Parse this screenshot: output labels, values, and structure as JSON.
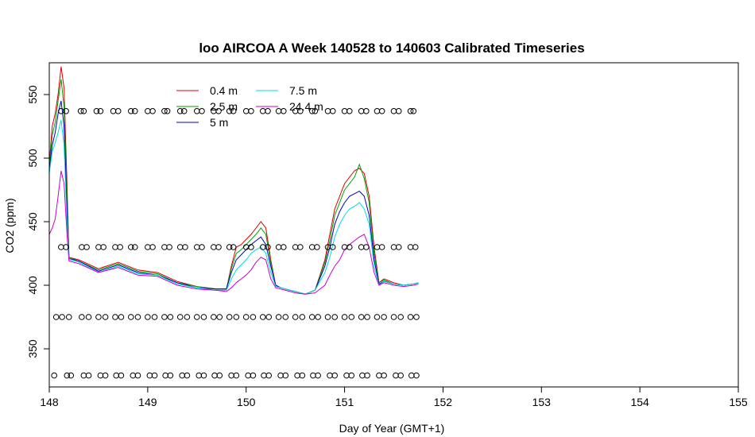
{
  "chart_data": {
    "type": "line",
    "title": "loo AIRCOA A  Week 140528 to 140603  Calibrated Timeseries",
    "xlabel": "Day of Year (GMT+1)",
    "ylabel": "CO2 (ppm)",
    "xlim": [
      148,
      155
    ],
    "ylim": [
      320,
      575
    ],
    "xticks": [
      148,
      149,
      150,
      151,
      152,
      153,
      154,
      155
    ],
    "yticks": [
      350,
      400,
      450,
      500,
      550
    ],
    "legend_position": "top-left",
    "series": [
      {
        "name": "0.4 m",
        "color": "#dd0000",
        "x": [
          148.0,
          148.03,
          148.06,
          148.09,
          148.12,
          148.15,
          148.18,
          148.2,
          148.3,
          148.5,
          148.7,
          148.9,
          149.1,
          149.3,
          149.5,
          149.7,
          149.8,
          149.85,
          149.9,
          149.95,
          150.0,
          150.05,
          150.1,
          150.15,
          150.2,
          150.25,
          150.3,
          150.35,
          150.4,
          150.5,
          150.6,
          150.7,
          150.8,
          150.85,
          150.9,
          150.95,
          151.0,
          151.05,
          151.1,
          151.15,
          151.2,
          151.25,
          151.3,
          151.35,
          151.4,
          151.5,
          151.6,
          151.7,
          151.75
        ],
        "y": [
          495,
          525,
          535,
          550,
          572,
          555,
          480,
          422,
          420,
          413,
          418,
          412,
          410,
          403,
          399,
          397,
          397,
          415,
          430,
          432,
          436,
          440,
          445,
          450,
          445,
          420,
          400,
          398,
          397,
          395,
          393,
          396,
          420,
          440,
          460,
          470,
          480,
          485,
          490,
          492,
          488,
          470,
          430,
          402,
          405,
          402,
          400,
          401,
          402
        ]
      },
      {
        "name": "2.5 m",
        "color": "#00a000",
        "x": [
          148.0,
          148.03,
          148.06,
          148.09,
          148.12,
          148.15,
          148.18,
          148.2,
          148.3,
          148.5,
          148.7,
          148.9,
          149.1,
          149.3,
          149.5,
          149.7,
          149.8,
          149.85,
          149.9,
          149.95,
          150.0,
          150.05,
          150.1,
          150.15,
          150.2,
          150.25,
          150.3,
          150.35,
          150.4,
          150.5,
          150.6,
          150.7,
          150.8,
          150.85,
          150.9,
          150.95,
          151.0,
          151.05,
          151.1,
          151.15,
          151.2,
          151.25,
          151.3,
          151.35,
          151.4,
          151.5,
          151.6,
          151.7,
          151.75
        ],
        "y": [
          492,
          518,
          528,
          545,
          562,
          540,
          470,
          422,
          419,
          412,
          417,
          411,
          409,
          402,
          399,
          397,
          397,
          413,
          425,
          428,
          432,
          436,
          440,
          445,
          440,
          418,
          400,
          398,
          397,
          395,
          393,
          396,
          418,
          435,
          455,
          465,
          475,
          480,
          485,
          495,
          484,
          465,
          425,
          402,
          404,
          401,
          400,
          401,
          402
        ]
      },
      {
        "name": "5 m",
        "color": "#0000cc",
        "x": [
          148.0,
          148.03,
          148.06,
          148.09,
          148.12,
          148.15,
          148.18,
          148.2,
          148.3,
          148.5,
          148.7,
          148.9,
          149.1,
          149.3,
          149.5,
          149.7,
          149.8,
          149.85,
          149.9,
          149.95,
          150.0,
          150.05,
          150.1,
          150.15,
          150.2,
          150.25,
          150.3,
          150.35,
          150.4,
          150.5,
          150.6,
          150.7,
          150.8,
          150.85,
          150.9,
          150.95,
          151.0,
          151.05,
          151.1,
          151.15,
          151.2,
          151.25,
          151.3,
          151.35,
          151.4,
          151.5,
          151.6,
          151.7,
          151.75
        ],
        "y": [
          490,
          510,
          520,
          535,
          545,
          525,
          460,
          421,
          419,
          411,
          416,
          410,
          408,
          402,
          398,
          397,
          397,
          410,
          420,
          424,
          428,
          432,
          435,
          438,
          432,
          415,
          400,
          398,
          397,
          395,
          393,
          396,
          415,
          430,
          448,
          458,
          465,
          470,
          472,
          474,
          470,
          455,
          420,
          401,
          403,
          401,
          400,
          401,
          402
        ]
      },
      {
        "name": "7.5 m",
        "color": "#00dddd",
        "x": [
          148.0,
          148.03,
          148.06,
          148.09,
          148.12,
          148.15,
          148.18,
          148.2,
          148.3,
          148.5,
          148.7,
          148.9,
          149.1,
          149.3,
          149.5,
          149.7,
          149.8,
          149.85,
          149.9,
          149.95,
          150.0,
          150.05,
          150.1,
          150.15,
          150.2,
          150.25,
          150.3,
          150.35,
          150.4,
          150.5,
          150.6,
          150.7,
          150.8,
          150.85,
          150.9,
          150.95,
          151.0,
          151.05,
          151.1,
          151.15,
          151.2,
          151.25,
          151.3,
          151.35,
          151.4,
          151.5,
          151.6,
          151.7,
          151.75
        ],
        "y": [
          488,
          505,
          512,
          520,
          530,
          510,
          450,
          420,
          418,
          410,
          415,
          409,
          408,
          401,
          398,
          396,
          396,
          405,
          412,
          416,
          420,
          425,
          428,
          430,
          425,
          410,
          399,
          398,
          397,
          395,
          393,
          396,
          410,
          422,
          438,
          448,
          455,
          460,
          462,
          465,
          460,
          448,
          415,
          400,
          403,
          401,
          400,
          401,
          402
        ]
      },
      {
        "name": "24.4 m",
        "color": "#cc00cc",
        "x": [
          148.0,
          148.03,
          148.06,
          148.09,
          148.12,
          148.15,
          148.18,
          148.2,
          148.3,
          148.5,
          148.7,
          148.9,
          149.1,
          149.3,
          149.5,
          149.7,
          149.8,
          149.85,
          149.9,
          149.95,
          150.0,
          150.05,
          150.1,
          150.15,
          150.2,
          150.25,
          150.3,
          150.35,
          150.4,
          150.5,
          150.6,
          150.7,
          150.8,
          150.85,
          150.9,
          150.95,
          151.0,
          151.05,
          151.1,
          151.15,
          151.2,
          151.25,
          151.3,
          151.35,
          151.4,
          151.5,
          151.6,
          151.7,
          151.75
        ],
        "y": [
          440,
          445,
          452,
          470,
          490,
          480,
          440,
          419,
          417,
          410,
          414,
          408,
          407,
          400,
          397,
          396,
          395,
          398,
          402,
          405,
          408,
          412,
          418,
          422,
          420,
          405,
          398,
          397,
          396,
          394,
          393,
          394,
          400,
          408,
          415,
          420,
          428,
          432,
          435,
          438,
          440,
          430,
          410,
          400,
          402,
          400,
          399,
          400,
          401
        ]
      },
      {
        "name": "",
        "type": "scatter",
        "color": "#000000",
        "x": [
          148.12,
          148.17,
          148.32,
          148.35,
          148.48,
          148.52,
          148.65,
          148.7,
          148.83,
          148.87,
          149.0,
          149.05,
          149.17,
          149.2,
          149.33,
          149.37,
          149.5,
          149.55,
          149.67,
          149.72,
          149.83,
          149.87,
          150.0,
          150.05,
          150.17,
          150.22,
          150.33,
          150.38,
          150.5,
          150.55,
          150.67,
          150.7,
          150.83,
          150.88,
          151.0,
          151.05,
          151.17,
          151.22,
          151.33,
          151.38,
          151.5,
          151.55,
          151.67,
          151.7
        ],
        "y": [
          537,
          537,
          537,
          537,
          537,
          537,
          537,
          537,
          537,
          537,
          537,
          537,
          537,
          537,
          537,
          537,
          537,
          537,
          537,
          537,
          537,
          537,
          537,
          537,
          537,
          537,
          537,
          537,
          537,
          537,
          537,
          537,
          537,
          537,
          537,
          537,
          537,
          537,
          537,
          537,
          537,
          537,
          537,
          537
        ]
      },
      {
        "name": "",
        "type": "scatter",
        "color": "#000000",
        "x": [
          148.12,
          148.17,
          148.33,
          148.38,
          148.5,
          148.55,
          148.67,
          148.72,
          148.83,
          148.87,
          149.0,
          149.05,
          149.17,
          149.22,
          149.33,
          149.38,
          149.5,
          149.55,
          149.67,
          149.72,
          149.83,
          149.87,
          150.0,
          150.05,
          150.17,
          150.22,
          150.33,
          150.38,
          150.5,
          150.55,
          150.67,
          150.72,
          150.83,
          150.88,
          151.0,
          151.05,
          151.17,
          151.22,
          151.33,
          151.38,
          151.5,
          151.55,
          151.67,
          151.72
        ],
        "y": [
          430,
          430,
          430,
          430,
          430,
          430,
          430,
          430,
          430,
          430,
          430,
          430,
          430,
          430,
          430,
          430,
          430,
          430,
          430,
          430,
          430,
          430,
          430,
          430,
          430,
          430,
          430,
          430,
          430,
          430,
          430,
          430,
          430,
          430,
          430,
          430,
          430,
          430,
          430,
          430,
          430,
          430,
          430,
          430
        ]
      },
      {
        "name": "",
        "type": "scatter",
        "color": "#000000",
        "x": [
          148.07,
          148.13,
          148.2,
          148.33,
          148.4,
          148.5,
          148.57,
          148.67,
          148.73,
          148.83,
          148.9,
          149.0,
          149.07,
          149.17,
          149.23,
          149.33,
          149.4,
          149.5,
          149.57,
          149.67,
          149.73,
          149.83,
          149.9,
          150.0,
          150.07,
          150.17,
          150.23,
          150.33,
          150.4,
          150.5,
          150.57,
          150.67,
          150.73,
          150.83,
          150.9,
          151.0,
          151.07,
          151.17,
          151.23,
          151.33,
          151.4,
          151.5,
          151.57,
          151.67,
          151.73
        ],
        "y": [
          375,
          375,
          375,
          375,
          375,
          375,
          375,
          375,
          375,
          375,
          375,
          375,
          375,
          375,
          375,
          375,
          375,
          375,
          375,
          375,
          375,
          375,
          375,
          375,
          375,
          375,
          375,
          375,
          375,
          375,
          375,
          375,
          375,
          375,
          375,
          375,
          375,
          375,
          375,
          375,
          375,
          375,
          375,
          375,
          375
        ]
      },
      {
        "name": "",
        "type": "scatter",
        "color": "#000000",
        "x": [
          148.05,
          148.18,
          148.22,
          148.35,
          148.4,
          148.52,
          148.57,
          148.68,
          148.73,
          148.85,
          148.9,
          149.02,
          149.07,
          149.18,
          149.23,
          149.35,
          149.4,
          149.52,
          149.57,
          149.68,
          149.73,
          149.85,
          149.9,
          150.02,
          150.07,
          150.18,
          150.23,
          150.35,
          150.4,
          150.52,
          150.57,
          150.68,
          150.73,
          150.85,
          150.9,
          151.02,
          151.07,
          151.18,
          151.23,
          151.35,
          151.4,
          151.52,
          151.57,
          151.68,
          151.73
        ],
        "y": [
          329,
          329,
          329,
          329,
          329,
          329,
          329,
          329,
          329,
          329,
          329,
          329,
          329,
          329,
          329,
          329,
          329,
          329,
          329,
          329,
          329,
          329,
          329,
          329,
          329,
          329,
          329,
          329,
          329,
          329,
          329,
          329,
          329,
          329,
          329,
          329,
          329,
          329,
          329,
          329,
          329,
          329,
          329,
          329,
          329
        ]
      }
    ]
  }
}
